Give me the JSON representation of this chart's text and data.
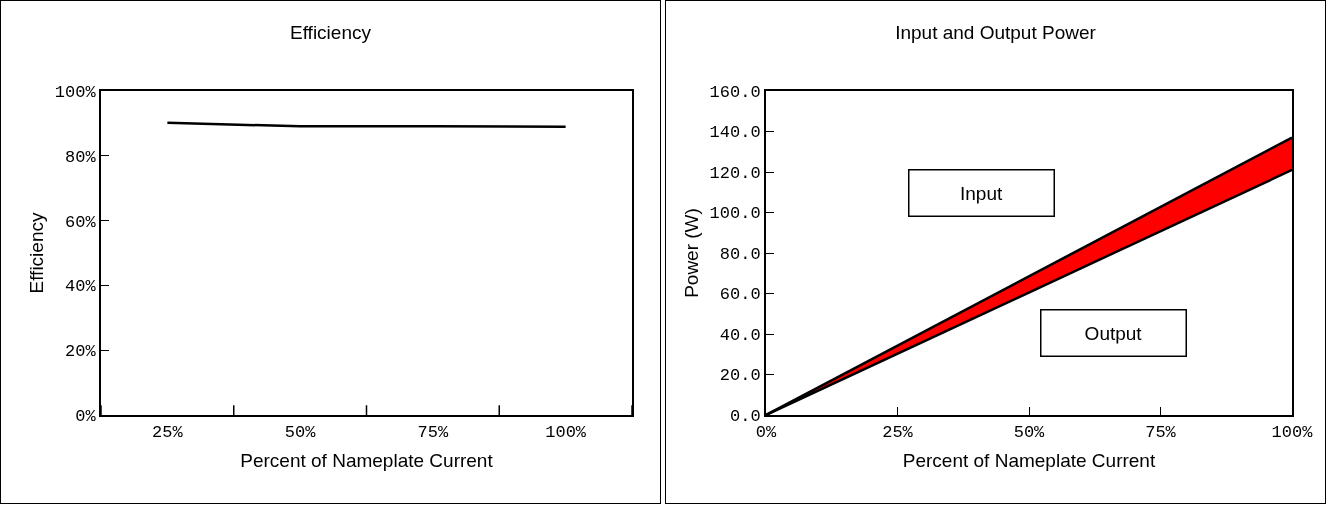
{
  "chart_data": [
    {
      "type": "line",
      "title": "Efficiency",
      "xlabel": "Percent of Nameplate Current",
      "ylabel": "Efficiency",
      "categories": [
        "25%",
        "50%",
        "75%",
        "100%"
      ],
      "series": [
        {
          "color": "#000000",
          "values": [
            90.2,
            89.1,
            89.1,
            89.0
          ]
        }
      ],
      "ylim": [
        0,
        100
      ],
      "yticks": [
        {
          "value": 0,
          "label": "0%"
        },
        {
          "value": 20,
          "label": "20%"
        },
        {
          "value": 40,
          "label": "40%"
        },
        {
          "value": 60,
          "label": "60%"
        },
        {
          "value": 80,
          "label": "80%"
        },
        {
          "value": 100,
          "label": "100%"
        }
      ],
      "grid": false,
      "marker": "none",
      "line_style": "solid"
    },
    {
      "type": "line",
      "title": "Input and Output Power",
      "xlabel": "Percent of Nameplate Current",
      "ylabel": "Power (W)",
      "x": [
        0,
        100
      ],
      "annotations": [
        "Input",
        "Output"
      ],
      "series": [
        {
          "type": "line",
          "color": "#000000",
          "values": [
            0,
            121
          ]
        },
        {
          "type": "area",
          "color": "#ff0000",
          "values": [
            0,
            137
          ]
        }
      ],
      "xlim": [
        0,
        100
      ],
      "xticks": [
        {
          "value": 0,
          "label": "0%"
        },
        {
          "value": 25,
          "label": "25%"
        },
        {
          "value": 50,
          "label": "50%"
        },
        {
          "value": 75,
          "label": "75%"
        },
        {
          "value": 100,
          "label": "100%"
        }
      ],
      "ylim": [
        0,
        160
      ],
      "yticks": [
        {
          "value": 0,
          "label": "0.0"
        },
        {
          "value": 20,
          "label": "20.0"
        },
        {
          "value": 40,
          "label": "40.0"
        },
        {
          "value": 60,
          "label": "60.0"
        },
        {
          "value": 80,
          "label": "80.0"
        },
        {
          "value": 100,
          "label": "100.0"
        },
        {
          "value": 120,
          "label": "120.0"
        },
        {
          "value": 140,
          "label": "140.0"
        },
        {
          "value": 160,
          "label": "160.0"
        }
      ],
      "grid": false,
      "marker": "none",
      "line_style": "solid"
    }
  ]
}
